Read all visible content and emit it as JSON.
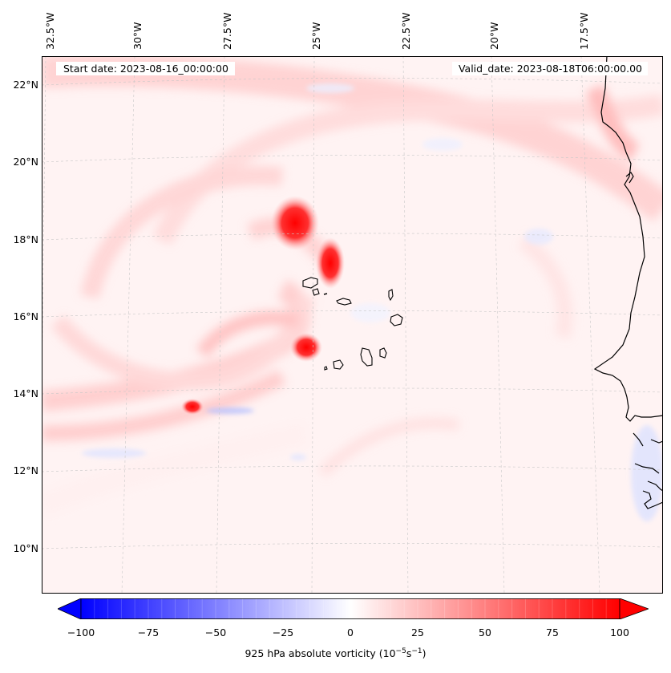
{
  "map": {
    "start_date": "Start date: 2023-08-16_00:00:00",
    "valid_date": "Valid_date: 2023-08-18T06:00:00.00",
    "longitude_labels": [
      "32.5°W",
      "30°W",
      "27.5°W",
      "25°W",
      "22.5°W",
      "20°W",
      "17.5°W"
    ],
    "latitude_labels": [
      "22°N",
      "20°N",
      "18°N",
      "16°N",
      "14°N",
      "12°N",
      "10°N"
    ],
    "field": "925 hPa absolute vorticity",
    "colormap": "bwr",
    "colors": {
      "negative": "#0000ff",
      "zero": "#ffffff",
      "positive": "#ff0000",
      "coast": "#000000"
    }
  },
  "colorbar": {
    "ticks": [
      "−100",
      "−75",
      "−50",
      "−25",
      "0",
      "25",
      "50",
      "75",
      "100"
    ],
    "label": "925 hPa absolute vorticity (10",
    "label_exp1": "−5",
    "label_mid": "s",
    "label_exp2": "−1",
    "label_end": ")",
    "range": [
      -100,
      100
    ]
  }
}
